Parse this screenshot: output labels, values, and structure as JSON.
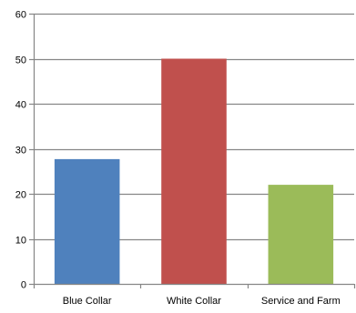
{
  "chart_data": {
    "type": "bar",
    "title": "",
    "xlabel": "",
    "ylabel": "",
    "categories": [
      "Blue Collar",
      "White Collar",
      "Service and Farm"
    ],
    "series": [
      {
        "values": [
          27.7,
          50,
          22
        ],
        "colors": [
          "#4f81bd",
          "#c0504d",
          "#9bbb59"
        ]
      }
    ],
    "ylim": [
      0,
      60
    ],
    "yticks": [
      0,
      10,
      20,
      30,
      40,
      50,
      60
    ],
    "grid": true,
    "legend": "none"
  },
  "style": {
    "grid_color": "#868686",
    "axis_color": "#868686"
  }
}
